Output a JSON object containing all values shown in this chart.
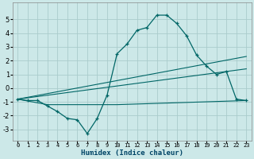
{
  "xlabel": "Humidex (Indice chaleur)",
  "background_color": "#cce8e8",
  "grid_color": "#aacccc",
  "line_color": "#006666",
  "xlim": [
    -0.5,
    23.5
  ],
  "ylim": [
    -3.8,
    6.2
  ],
  "yticks": [
    -3,
    -2,
    -1,
    0,
    1,
    2,
    3,
    4,
    5
  ],
  "xticks": [
    0,
    1,
    2,
    3,
    4,
    5,
    6,
    7,
    8,
    9,
    10,
    11,
    12,
    13,
    14,
    15,
    16,
    17,
    18,
    19,
    20,
    21,
    22,
    23
  ],
  "series1_x": [
    0,
    1,
    2,
    3,
    4,
    5,
    6,
    7,
    8,
    9,
    10,
    11,
    12,
    13,
    14,
    15,
    16,
    17,
    18,
    19,
    20,
    21,
    22,
    23
  ],
  "series1_y": [
    -0.8,
    -0.9,
    -0.9,
    -1.3,
    -1.7,
    -2.2,
    -2.3,
    -3.3,
    -2.2,
    -0.5,
    2.5,
    3.2,
    4.2,
    4.4,
    5.3,
    5.3,
    4.7,
    3.8,
    2.4,
    1.6,
    1.0,
    1.2,
    -0.8,
    -0.9
  ],
  "series2_x": [
    0,
    23
  ],
  "series2_y": [
    -0.8,
    2.3
  ],
  "series3_x": [
    0,
    23
  ],
  "series3_y": [
    -0.8,
    1.4
  ],
  "series4_x": [
    0,
    3,
    7,
    10,
    23
  ],
  "series4_y": [
    -0.8,
    -1.2,
    -1.2,
    -1.2,
    -0.9
  ]
}
